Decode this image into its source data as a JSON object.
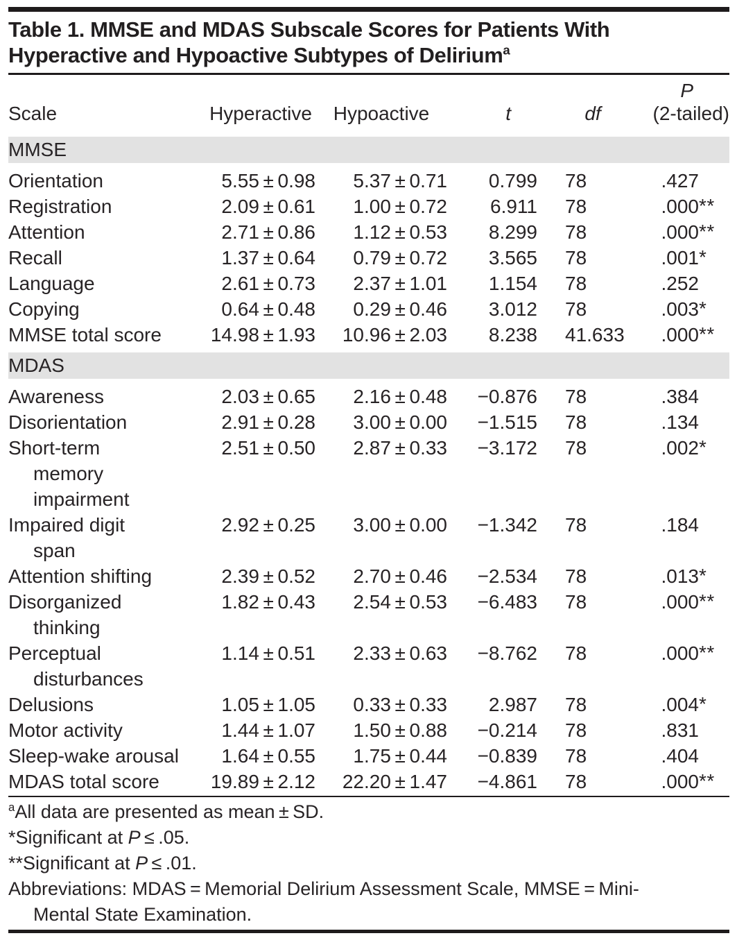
{
  "colors": {
    "text": "#272325",
    "rule": "#1e1b1c",
    "section_band": "#e2e2e2",
    "background": "#ffffff"
  },
  "title": {
    "runs": [
      {
        "t": "Table 1. MMSE and MDAS Subscale Scores for Patients With\nHyperactive and Hypoactive Subtypes of Delirium"
      },
      {
        "t": "a",
        "sup": true
      }
    ]
  },
  "table": {
    "headers": {
      "scale": "Scale",
      "hyperactive": "Hyperactive",
      "hypoactive": "Hypoactive",
      "t": "t",
      "df": "df",
      "p_line1": "P",
      "p_line2": "(2-tailed)"
    },
    "sections": [
      {
        "name": "MMSE",
        "rows": [
          {
            "scale": "Orientation",
            "hyperactive": "5.55 ± 0.98",
            "hypoactive": "5.37 ± 0.71",
            "t": "0.799",
            "df": "78",
            "p": ".427",
            "stars": ""
          },
          {
            "scale": "Registration",
            "hyperactive": "2.09 ± 0.61",
            "hypoactive": "1.00 ± 0.72",
            "t": "6.911",
            "df": "78",
            "p": ".000",
            "stars": "**"
          },
          {
            "scale": "Attention",
            "hyperactive": "2.71 ± 0.86",
            "hypoactive": "1.12 ± 0.53",
            "t": "8.299",
            "df": "78",
            "p": ".000",
            "stars": "**"
          },
          {
            "scale": "Recall",
            "hyperactive": "1.37 ± 0.64",
            "hypoactive": "0.79 ± 0.72",
            "t": "3.565",
            "df": "78",
            "p": ".001",
            "stars": "*"
          },
          {
            "scale": "Language",
            "hyperactive": "2.61 ± 0.73",
            "hypoactive": "2.37 ± 1.01",
            "t": "1.154",
            "df": "78",
            "p": ".252",
            "stars": ""
          },
          {
            "scale": "Copying",
            "hyperactive": "0.64 ± 0.48",
            "hypoactive": "0.29 ± 0.46",
            "t": "3.012",
            "df": "78",
            "p": ".003",
            "stars": "*"
          },
          {
            "scale": "MMSE total score",
            "hyperactive": "14.98 ± 1.93",
            "hypoactive": "10.96 ± 2.03",
            "t": "8.238",
            "df": "41.633",
            "p": ".000",
            "stars": "**"
          }
        ]
      },
      {
        "name": "MDAS",
        "rows": [
          {
            "scale": "Awareness",
            "hyperactive": "2.03 ± 0.65",
            "hypoactive": "2.16 ± 0.48",
            "t": "−0.876",
            "df": "78",
            "p": ".384",
            "stars": ""
          },
          {
            "scale": "Disorientation",
            "hyperactive": "2.91 ± 0.28",
            "hypoactive": "3.00 ± 0.00",
            "t": "−1.515",
            "df": "78",
            "p": ".134",
            "stars": ""
          },
          {
            "scale": "Short-term\nmemory\nimpairment",
            "hyperactive": "2.51 ± 0.50",
            "hypoactive": "2.87 ± 0.33",
            "t": "−3.172",
            "df": "78",
            "p": ".002",
            "stars": "*"
          },
          {
            "scale": "Impaired digit\nspan",
            "hyperactive": "2.92 ± 0.25",
            "hypoactive": "3.00 ± 0.00",
            "t": "−1.342",
            "df": "78",
            "p": ".184",
            "stars": ""
          },
          {
            "scale": "Attention shifting",
            "hyperactive": "2.39 ± 0.52",
            "hypoactive": "2.70 ± 0.46",
            "t": "−2.534",
            "df": "78",
            "p": ".013",
            "stars": "*"
          },
          {
            "scale": "Disorganized\nthinking",
            "hyperactive": "1.82 ± 0.43",
            "hypoactive": "2.54 ± 0.53",
            "t": "−6.483",
            "df": "78",
            "p": ".000",
            "stars": "**"
          },
          {
            "scale": "Perceptual\ndisturbances",
            "hyperactive": "1.14 ± 0.51",
            "hypoactive": "2.33 ± 0.63",
            "t": "−8.762",
            "df": "78",
            "p": ".000",
            "stars": "**"
          },
          {
            "scale": "Delusions",
            "hyperactive": "1.05 ± 1.05",
            "hypoactive": "0.33 ± 0.33",
            "t": "2.987",
            "df": "78",
            "p": ".004",
            "stars": "*"
          },
          {
            "scale": "Motor activity",
            "hyperactive": "1.44 ± 1.07",
            "hypoactive": "1.50 ± 0.88",
            "t": "−0.214",
            "df": "78",
            "p": ".831",
            "stars": ""
          },
          {
            "scale": "Sleep-wake arousal",
            "hyperactive": "1.64 ± 0.55",
            "hypoactive": "1.75 ± 0.44",
            "t": "−0.839",
            "df": "78",
            "p": ".404",
            "stars": ""
          },
          {
            "scale": "MDAS total score",
            "hyperactive": "19.89 ± 2.12",
            "hypoactive": "22.20 ± 1.47",
            "t": "−4.861",
            "df": "78",
            "p": ".000",
            "stars": "**"
          }
        ]
      }
    ]
  },
  "footnotes": [
    {
      "runs": [
        {
          "t": "a",
          "sup": true
        },
        {
          "t": "All data are presented as mean ± SD."
        }
      ]
    },
    {
      "runs": [
        {
          "t": "*Significant at "
        },
        {
          "t": "P",
          "i": true
        },
        {
          "t": " ≤ .05."
        }
      ]
    },
    {
      "runs": [
        {
          "t": "**Significant at "
        },
        {
          "t": "P",
          "i": true
        },
        {
          "t": " ≤ .01."
        }
      ]
    },
    {
      "runs": [
        {
          "t": "Abbreviations: MDAS = Memorial Delirium Assessment Scale, MMSE = Mini-\nMental State Examination."
        }
      ]
    }
  ]
}
